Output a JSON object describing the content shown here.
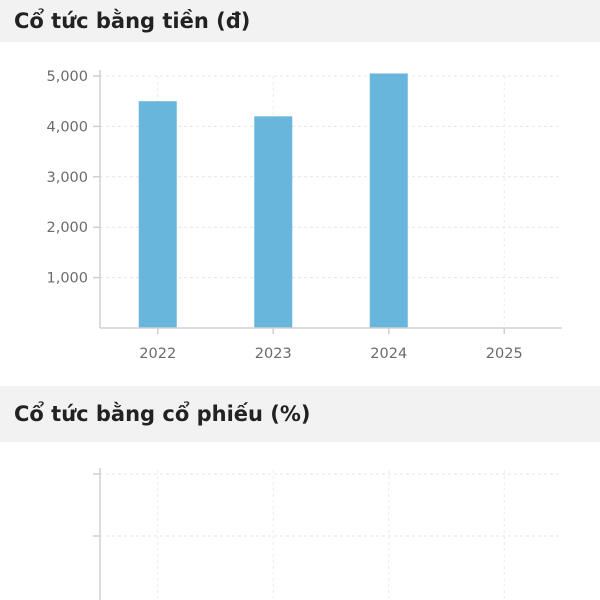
{
  "sections": {
    "cash": {
      "title": "Cổ tức bằng tiền (đ)"
    },
    "stock": {
      "title": "Cổ tức bằng cổ phiếu (%)"
    }
  },
  "chart_data": [
    {
      "type": "bar",
      "title": "Cổ tức bằng tiền (đ)",
      "categories": [
        "2022",
        "2023",
        "2024",
        "2025"
      ],
      "values": [
        4500,
        4200,
        5050,
        null
      ],
      "yticks": [
        "1,000",
        "2,000",
        "3,000",
        "4,000",
        "5,000"
      ],
      "ylim": [
        0,
        5000
      ],
      "bar_color": "#69b6dc",
      "grid": true
    },
    {
      "type": "bar",
      "title": "Cổ tức bằng cổ phiếu (%)",
      "categories": [],
      "values": [],
      "grid": true
    }
  ]
}
